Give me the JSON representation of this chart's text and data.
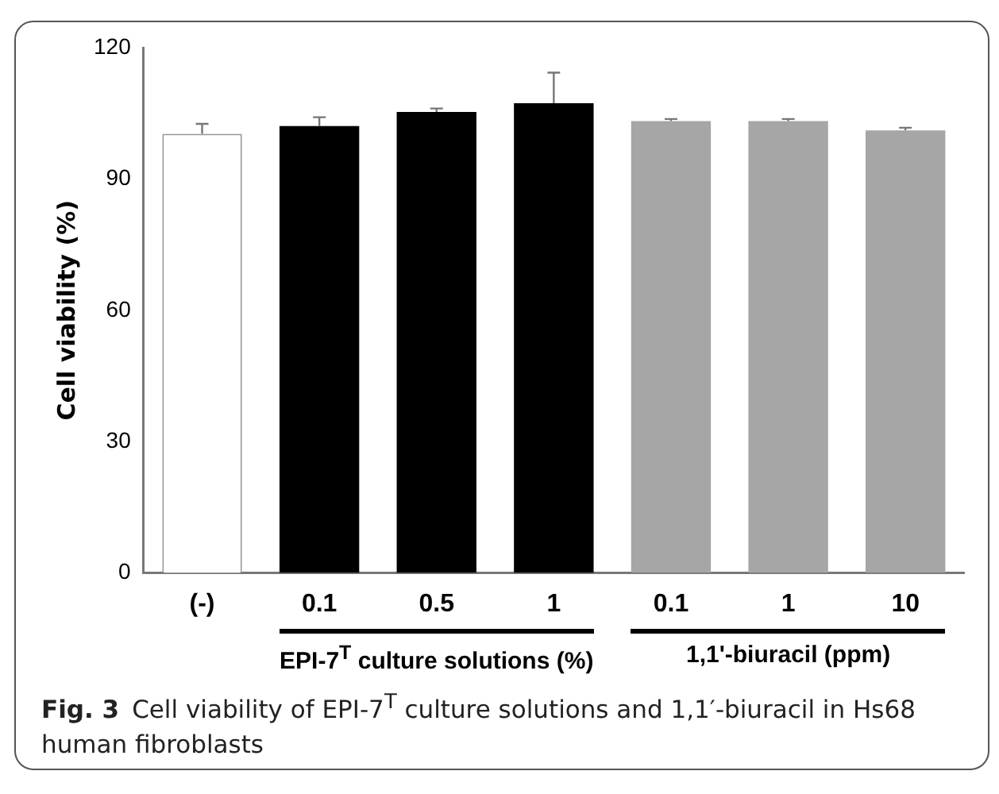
{
  "chart_data": {
    "type": "bar",
    "ylabel": "Cell viability (%)",
    "categories": [
      "(-)",
      "0.1",
      "0.5",
      "1",
      "0.1",
      "1",
      "10"
    ],
    "values": [
      100.3,
      102.1,
      105.3,
      107.3,
      103.2,
      103.2,
      101.1
    ],
    "errors": [
      2.3,
      2,
      0.8,
      7,
      0.5,
      0.5,
      0.6
    ],
    "colors": [
      "#ffffff",
      "#000000",
      "#000000",
      "#000000",
      "#a6a6a6",
      "#a6a6a6",
      "#a6a6a6"
    ],
    "ylim": [
      0,
      120
    ],
    "yticks": [
      0,
      30,
      60,
      90,
      120
    ],
    "grid": false,
    "legend": false,
    "annotations": [
      "EPI-7$^{T}$ culture solutions (%)",
      "1,1'-biuracil (ppm)",
      "Fig. 3",
      "Cell viability of EPI-7$^{T}$ culture solutions and 1,1′-biuracil in Hs68 human fibroblasts"
    ]
  }
}
